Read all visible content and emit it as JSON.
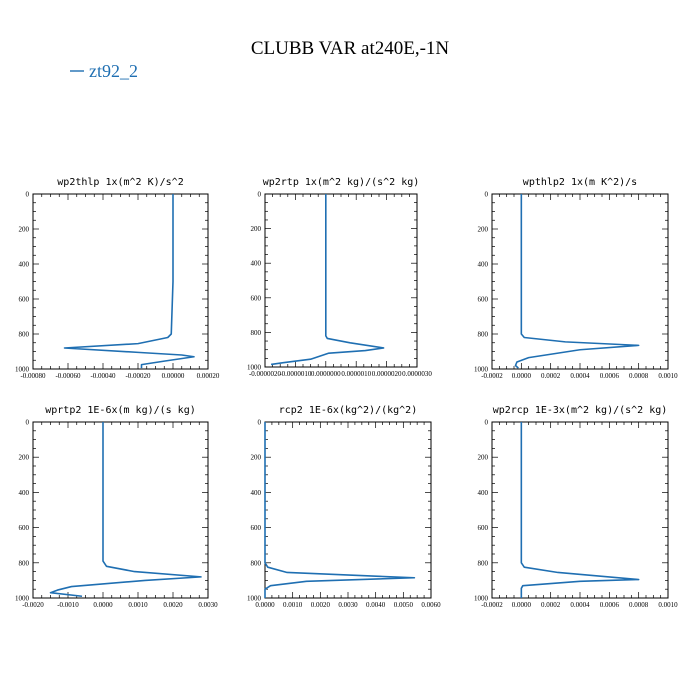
{
  "figure": {
    "title": "CLUBB VAR at240E,-1N",
    "legend": {
      "label": "zt92_2",
      "color": "#1f6fb2",
      "placement": "top-left"
    }
  },
  "chart_data": [
    {
      "type": "line",
      "title": "wp2thlp  1x(m^2 K)/s^2",
      "xlim": [
        -0.0008,
        0.0002
      ],
      "ylim": [
        1000,
        0
      ],
      "x_ticks": [
        -0.0008,
        -0.0006,
        -0.0004,
        -0.0002,
        0,
        0.0002
      ],
      "x_tick_labels": [
        "-0.00080",
        "-0.00060",
        "-0.00040",
        "-0.00020",
        "0.00000",
        "0.00020"
      ],
      "y_ticks": [
        0,
        200,
        400,
        600,
        800,
        1000
      ],
      "y_tick_labels": [
        "0",
        "200",
        "400",
        "600",
        "800",
        "1000"
      ],
      "series": [
        {
          "name": "zt92_2",
          "x": [
            0,
            0,
            0,
            -1e-05,
            -3e-05,
            -0.0002,
            -0.00062,
            -0.0002,
            5e-05,
            0.00012,
            -5e-05,
            -0.00018,
            -0.00018
          ],
          "y": [
            0,
            200,
            500,
            800,
            820,
            855,
            880,
            905,
            920,
            930,
            955,
            975,
            995
          ]
        }
      ]
    },
    {
      "type": "line",
      "title": "wp2rtp  1x(m^2 kg)/(s^2 kg)",
      "xlim": [
        -2e-06,
        3e-06
      ],
      "ylim": [
        1000,
        0
      ],
      "x_ticks": [
        -2e-06,
        -1e-06,
        0,
        1e-06,
        2e-06,
        3e-06
      ],
      "x_tick_labels": [
        "-0.0000020",
        "-0.0000010",
        "0.0000000",
        "0.0000010",
        "0.0000020",
        "0.0000030"
      ],
      "y_ticks": [
        0,
        200,
        400,
        600,
        800,
        1000
      ],
      "y_tick_labels": [
        "0",
        "200",
        "400",
        "600",
        "800",
        "1000"
      ],
      "series": [
        {
          "name": "zt92_2",
          "x": [
            0,
            0,
            0,
            5e-08,
            8e-07,
            1.9e-06,
            1.3e-06,
            1e-07,
            -5e-07,
            -1.4e-06,
            -1.8e-06
          ],
          "y": [
            0,
            400,
            820,
            835,
            860,
            890,
            905,
            920,
            955,
            975,
            985
          ]
        }
      ]
    },
    {
      "type": "line",
      "title": "wpthlp2  1x(m K^2)/s",
      "xlim": [
        -0.0002,
        0.001
      ],
      "ylim": [
        1000,
        0
      ],
      "x_ticks": [
        -0.0002,
        0,
        0.0002,
        0.0004,
        0.0006,
        0.0008,
        0.001
      ],
      "x_tick_labels": [
        "-0.0002",
        "0.0000",
        "0.0002",
        "0.0004",
        "0.0006",
        "0.0008",
        "0.0010"
      ],
      "y_ticks": [
        0,
        200,
        400,
        600,
        800,
        1000
      ],
      "y_tick_labels": [
        "0",
        "200",
        "400",
        "600",
        "800",
        "1000"
      ],
      "series": [
        {
          "name": "zt92_2",
          "x": [
            0,
            0,
            0,
            2e-05,
            0.0003,
            0.0008,
            0.0004,
            5e-05,
            -3e-05,
            -4e-05,
            -2e-05
          ],
          "y": [
            0,
            400,
            800,
            820,
            845,
            865,
            890,
            935,
            960,
            980,
            995
          ]
        }
      ]
    },
    {
      "type": "line",
      "title": "wprtp2  1E-6x(m kg)/(s kg)",
      "xlim": [
        -0.002,
        0.003
      ],
      "ylim": [
        1000,
        0
      ],
      "x_ticks": [
        -0.002,
        -0.001,
        0,
        0.001,
        0.002,
        0.003
      ],
      "x_tick_labels": [
        "-0.0020",
        "-0.0010",
        "0.0000",
        "0.0010",
        "0.0020",
        "0.0030"
      ],
      "y_ticks": [
        0,
        200,
        400,
        600,
        800,
        1000
      ],
      "y_tick_labels": [
        "0",
        "200",
        "400",
        "600",
        "800",
        "1000"
      ],
      "series": [
        {
          "name": "zt92_2",
          "x": [
            0,
            0,
            0,
            0.0001,
            0.0009,
            0.0028,
            0.0012,
            -0.0009,
            -0.0013,
            -0.0015,
            -0.0006
          ],
          "y": [
            0,
            400,
            790,
            820,
            850,
            880,
            900,
            935,
            955,
            970,
            990
          ]
        }
      ]
    },
    {
      "type": "line",
      "title": "rcp2  1E-6x(kg^2)/(kg^2)",
      "xlim": [
        0,
        0.006
      ],
      "ylim": [
        1000,
        0
      ],
      "x_ticks": [
        0,
        0.001,
        0.002,
        0.003,
        0.004,
        0.005,
        0.006
      ],
      "x_tick_labels": [
        "0.0000",
        "0.0010",
        "0.0020",
        "0.0030",
        "0.0040",
        "0.0050",
        "0.0060"
      ],
      "y_ticks": [
        0,
        200,
        400,
        600,
        800,
        1000
      ],
      "y_tick_labels": [
        "0",
        "200",
        "400",
        "600",
        "800",
        "1000"
      ],
      "series": [
        {
          "name": "zt92_2",
          "x": [
            0,
            0,
            0,
            0.0001,
            0.0008,
            0.0054,
            0.0015,
            0.0002,
            0,
            0
          ],
          "y": [
            0,
            500,
            800,
            825,
            855,
            885,
            905,
            930,
            950,
            1000
          ]
        }
      ]
    },
    {
      "type": "line",
      "title": "wp2rcp  1E-3x(m^2 kg)/(s^2 kg)",
      "xlim": [
        -0.0002,
        0.001
      ],
      "ylim": [
        1000,
        0
      ],
      "x_ticks": [
        -0.0002,
        0,
        0.0002,
        0.0004,
        0.0006,
        0.0008,
        0.001
      ],
      "x_tick_labels": [
        "-0.0002",
        "0.0000",
        "0.0002",
        "0.0004",
        "0.0006",
        "0.0008",
        "0.0010"
      ],
      "y_ticks": [
        0,
        200,
        400,
        600,
        800,
        1000
      ],
      "y_tick_labels": [
        "0",
        "200",
        "400",
        "600",
        "800",
        "1000"
      ],
      "series": [
        {
          "name": "zt92_2",
          "x": [
            0,
            0,
            0,
            2e-05,
            0.00025,
            0.0008,
            0.0004,
            1e-05,
            0,
            0
          ],
          "y": [
            0,
            500,
            800,
            825,
            855,
            895,
            905,
            930,
            945,
            1000
          ]
        }
      ]
    }
  ]
}
